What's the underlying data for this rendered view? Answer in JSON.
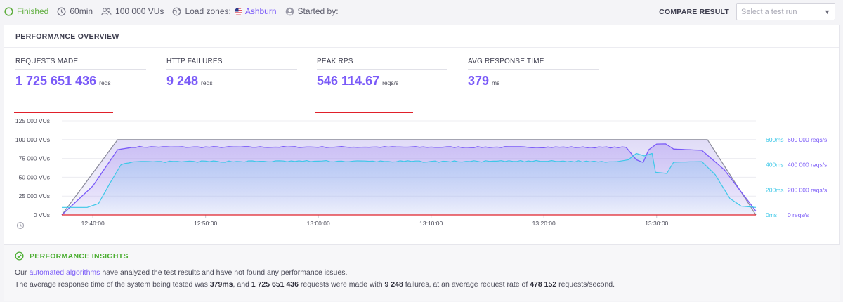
{
  "status": {
    "finished_label": "Finished",
    "duration": "60min",
    "vus": "100 000 VUs",
    "load_zones_label": "Load zones:",
    "load_zone": "Ashburn",
    "started_by_label": "Started by:"
  },
  "compare": {
    "label": "COMPARE RESULT",
    "placeholder": "Select a test run"
  },
  "panel": {
    "title": "PERFORMANCE OVERVIEW"
  },
  "stats": [
    {
      "label": "REQUESTS MADE",
      "value": "1 725 651 436",
      "unit": "reqs"
    },
    {
      "label": "HTTP FAILURES",
      "value": "9 248",
      "unit": "reqs"
    },
    {
      "label": "PEAK RPS",
      "value": "546 114.67",
      "unit": "reqs/s"
    },
    {
      "label": "AVG RESPONSE TIME",
      "value": "379",
      "unit": "ms"
    }
  ],
  "colors": {
    "vus": "#8a8a9a",
    "rps": "#7a5af8",
    "response": "#3ec8e8",
    "failures": "#e0202a",
    "accent": "#7a5af8",
    "success": "#5fae3e"
  },
  "chart_data": {
    "type": "line",
    "x_ticks": [
      "12:40:00",
      "12:50:00",
      "13:00:00",
      "13:10:00",
      "13:20:00",
      "13:30:00"
    ],
    "x_minutes": [
      -2.75,
      58.8
    ],
    "left_axis": {
      "label": "VUs",
      "ticks": [
        "0 VUs",
        "25 000 VUs",
        "50 000 VUs",
        "75 000 VUs",
        "100 000 VUs",
        "125 000 VUs"
      ],
      "range": [
        0,
        125000
      ]
    },
    "right_axis_ms": {
      "ticks": [
        "0ms",
        "200ms",
        "400ms",
        "600ms"
      ],
      "range": [
        0,
        600
      ]
    },
    "right_axis_rps": {
      "ticks": [
        "0 reqs/s",
        "200 000 reqs/s",
        "400 000 reqs/s",
        "600 000 reqs/s"
      ],
      "range": [
        0,
        600000
      ]
    },
    "series": [
      {
        "name": "VUs",
        "axis": "vus",
        "points": [
          [
            -2.75,
            0
          ],
          [
            2.2,
            100000
          ],
          [
            54.5,
            100000
          ],
          [
            58.8,
            0
          ]
        ]
      },
      {
        "name": "Requests per second",
        "axis": "rps",
        "points": [
          [
            -2.75,
            0
          ],
          [
            0,
            230000
          ],
          [
            2.2,
            520000
          ],
          [
            3.8,
            542000
          ],
          [
            10,
            540000
          ],
          [
            20,
            541000
          ],
          [
            30,
            540000
          ],
          [
            40,
            540000
          ],
          [
            47.3,
            538000
          ],
          [
            48.2,
            440000
          ],
          [
            48.8,
            418000
          ],
          [
            49.3,
            520000
          ],
          [
            50,
            565000
          ],
          [
            50.8,
            566000
          ],
          [
            51.5,
            525000
          ],
          [
            54,
            515000
          ],
          [
            56,
            360000
          ],
          [
            58.8,
            30000
          ]
        ]
      },
      {
        "name": "Response time",
        "axis": "ms",
        "points": [
          [
            -2.75,
            60
          ],
          [
            -0.5,
            60
          ],
          [
            0.5,
            90
          ],
          [
            1.5,
            250
          ],
          [
            2.5,
            400
          ],
          [
            3.2,
            420
          ],
          [
            10,
            425
          ],
          [
            20,
            428
          ],
          [
            30,
            425
          ],
          [
            40,
            428
          ],
          [
            46.5,
            425
          ],
          [
            47.5,
            440
          ],
          [
            48.2,
            490
          ],
          [
            48.9,
            470
          ],
          [
            49.6,
            490
          ],
          [
            49.9,
            340
          ],
          [
            50.9,
            330
          ],
          [
            51.5,
            420
          ],
          [
            54,
            425
          ],
          [
            55.2,
            320
          ],
          [
            56.5,
            130
          ],
          [
            57.5,
            70
          ],
          [
            58.8,
            60
          ]
        ]
      },
      {
        "name": "HTTP failures",
        "axis": "vus",
        "points": [
          [
            -2.75,
            0
          ],
          [
            58.8,
            0
          ]
        ]
      }
    ]
  },
  "insights": {
    "title": "PERFORMANCE INSIGHTS",
    "line1_pre": "Our",
    "line1_link": "automated algorithms",
    "line1_post": "have analyzed the test results and have not found any performance issues.",
    "line2_a": "The average response time of the system being tested was",
    "line2_ms": "379ms",
    "line2_b": ", and",
    "line2_reqs": "1 725 651 436",
    "line2_c": "requests were made with",
    "line2_fail": "9 248",
    "line2_d": "failures, at an average request rate of",
    "line2_rate": "478 152",
    "line2_e": "requests/second."
  }
}
